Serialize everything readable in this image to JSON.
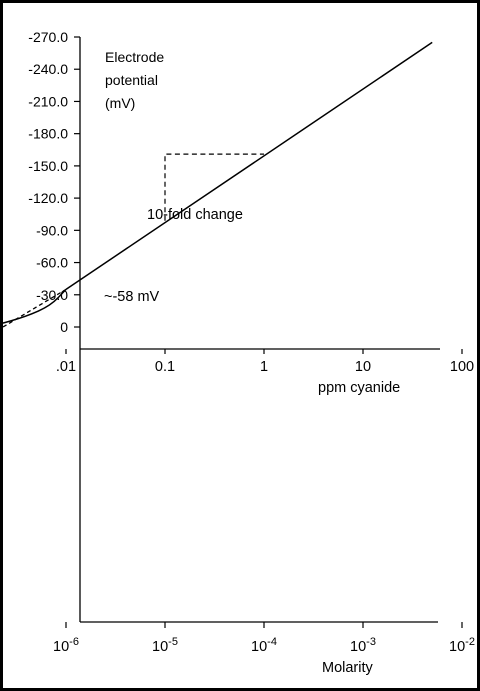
{
  "chart_data": {
    "type": "line",
    "y_axis": {
      "label_lines": [
        "Electrode",
        "potential",
        "(mV)"
      ],
      "ticks": [
        "-270.0",
        "-240.0",
        "-210.0",
        "-180.0",
        "-150.0",
        "-120.0",
        "-90.0",
        "-60.0",
        "-30.0",
        "0"
      ],
      "tick_values": [
        -270,
        -240,
        -210,
        -180,
        -150,
        -120,
        -90,
        -60,
        -30,
        0
      ],
      "range": [
        0,
        -270
      ],
      "orientation": "negative values upward"
    },
    "x_axis_ppm": {
      "label": "ppm cyanide",
      "scale": "log",
      "ticks": [
        ".01",
        "0.1",
        "1",
        "10",
        "100"
      ],
      "tick_values": [
        0.01,
        0.1,
        1,
        10,
        100
      ]
    },
    "x_axis_molarity": {
      "label": "Molarity",
      "scale": "log",
      "tick_bases": [
        "10",
        "10",
        "10",
        "10",
        "10"
      ],
      "tick_exponents": [
        "-6",
        "-5",
        "-4",
        "-3",
        "-2"
      ],
      "tick_values": [
        1e-06,
        1e-05,
        0.0001,
        0.001,
        0.01
      ]
    },
    "series": [
      {
        "style": "solid",
        "curve": "linear region",
        "points": [
          {
            "ppm": 0.01,
            "mv": -35
          },
          {
            "ppm": 50,
            "mv": -265
          }
        ]
      },
      {
        "style": "solid",
        "curve": "low-concentration deviation",
        "points": [
          {
            "ppm": 0.001,
            "mv": 5
          },
          {
            "ppm": 0.002,
            "mv": -2
          },
          {
            "ppm": 0.004,
            "mv": -10
          },
          {
            "ppm": 0.007,
            "mv": -20
          },
          {
            "ppm": 0.01,
            "mv": -35
          }
        ]
      },
      {
        "style": "dashed",
        "curve": "extrapolation",
        "points": [
          {
            "ppm": 0.001,
            "mv": 20
          },
          {
            "ppm": 0.01,
            "mv": -35
          }
        ]
      }
    ],
    "annotations": {
      "tenfold_label": "10-fold change",
      "slope_label": "~-58 mV",
      "tenfold_guide": {
        "from_ppm": 0.1,
        "to_ppm": 1,
        "from_mv": -99,
        "to_mv": -161
      }
    }
  }
}
